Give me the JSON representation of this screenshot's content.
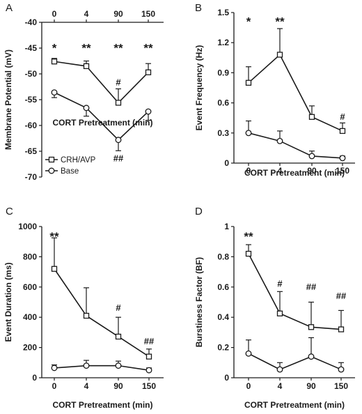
{
  "chart_data": [
    {
      "panel": "A",
      "type": "line",
      "x_axis_position": "top",
      "categories": [
        "0",
        "4",
        "90",
        "150"
      ],
      "xlabel": "CORT Pretreatment (min)",
      "ylabel": "Membrane Potential (mV)",
      "ylim": [
        -70,
        -40
      ],
      "yticks": [
        -40,
        -45,
        -50,
        -55,
        -60,
        -65,
        -70
      ],
      "ytick_labels": [
        "-40",
        "-45",
        "-50",
        "-55",
        "-60",
        "-65",
        "-70"
      ],
      "legend": {
        "placement": "bottom-left",
        "entries": [
          "CRH/AVP",
          "Base"
        ]
      },
      "error_direction": {
        "CRH/AVP": "up",
        "Base": "down"
      },
      "series": [
        {
          "name": "CRH/AVP",
          "marker": "square",
          "values": [
            -47.6,
            -48.5,
            -55.6,
            -49.7
          ],
          "errors": [
            0.6,
            1.0,
            2.7,
            1.7
          ]
        },
        {
          "name": "Base",
          "marker": "circle",
          "values": [
            -53.6,
            -56.6,
            -62.8,
            -57.3
          ],
          "errors": [
            1.0,
            1.6,
            2.1,
            1.7
          ]
        }
      ],
      "annotations": [
        {
          "text": "*",
          "x": "0",
          "y": -44.8,
          "size": "big"
        },
        {
          "text": "**",
          "x": "4",
          "y": -44.8,
          "size": "big"
        },
        {
          "text": "**",
          "x": "90",
          "y": -44.8,
          "size": "big"
        },
        {
          "text": "#",
          "x": "90",
          "y": -51.7,
          "size": "small"
        },
        {
          "text": "**",
          "x": "150",
          "y": -44.8,
          "size": "big"
        },
        {
          "text": "##",
          "x": "90",
          "y": -66.4,
          "size": "small"
        }
      ]
    },
    {
      "panel": "B",
      "type": "line",
      "x_axis_position": "bottom",
      "categories": [
        "0",
        "4",
        "90",
        "150"
      ],
      "xlabel": "CORT Pretreatment (min)",
      "ylabel": "Event Frequency (Hz)",
      "ylim": [
        0,
        1.5
      ],
      "yticks": [
        0,
        0.3,
        0.6,
        0.9,
        1.2,
        1.5
      ],
      "ytick_labels": [
        "0",
        "0.3",
        "0.6",
        "0.9",
        "1.2",
        "1.5"
      ],
      "error_direction": {
        "CRH/AVP": "up",
        "Base": "up"
      },
      "series": [
        {
          "name": "CRH/AVP",
          "marker": "square",
          "values": [
            0.8,
            1.08,
            0.46,
            0.32
          ],
          "errors": [
            0.16,
            0.26,
            0.11,
            0.08
          ]
        },
        {
          "name": "Base",
          "marker": "circle",
          "values": [
            0.3,
            0.22,
            0.07,
            0.05
          ],
          "errors": [
            0.12,
            0.1,
            0.05,
            0.02
          ]
        }
      ],
      "annotations": [
        {
          "text": "*",
          "x": "0",
          "y": 1.42,
          "size": "big"
        },
        {
          "text": "**",
          "x": "4",
          "y": 1.42,
          "size": "big"
        },
        {
          "text": "#",
          "x": "150",
          "y": 0.46,
          "size": "small"
        }
      ]
    },
    {
      "panel": "C",
      "type": "line",
      "x_axis_position": "bottom",
      "categories": [
        "0",
        "4",
        "90",
        "150"
      ],
      "xlabel": "CORT Pretreatment (min)",
      "ylabel": "Event Duration (ms)",
      "ylim": [
        0,
        1000
      ],
      "yticks": [
        0,
        200,
        400,
        600,
        800,
        1000
      ],
      "ytick_labels": [
        "0",
        "200",
        "400",
        "600",
        "800",
        "1000"
      ],
      "error_direction": {
        "CRH/AVP": "up",
        "Base": "up"
      },
      "series": [
        {
          "name": "CRH/AVP",
          "marker": "square",
          "values": [
            720,
            410,
            272,
            140
          ],
          "errors": [
            205,
            185,
            128,
            50
          ]
        },
        {
          "name": "Base",
          "marker": "circle",
          "values": [
            65,
            80,
            80,
            50
          ],
          "errors": [
            20,
            35,
            30,
            15
          ]
        }
      ],
      "annotations": [
        {
          "text": "**",
          "x": "0",
          "y": 940,
          "size": "big"
        },
        {
          "text": "#",
          "x": "90",
          "y": 460,
          "size": "small"
        },
        {
          "text": "##",
          "x": "150",
          "y": 240,
          "size": "small"
        }
      ]
    },
    {
      "panel": "D",
      "type": "line",
      "x_axis_position": "bottom",
      "categories": [
        "0",
        "4",
        "90",
        "150"
      ],
      "xlabel": "CORT Pretreatment (min)",
      "ylabel": "Burstiness Factor (BF)",
      "ylim": [
        0,
        1
      ],
      "yticks": [
        0,
        0.2,
        0.4,
        0.6,
        0.8,
        1
      ],
      "ytick_labels": [
        "0",
        "0.2",
        "0.4",
        "0.6",
        "0.8",
        "1"
      ],
      "error_direction": {
        "CRH/AVP": "up",
        "Base": "up"
      },
      "series": [
        {
          "name": "CRH/AVP",
          "marker": "square",
          "values": [
            0.82,
            0.425,
            0.335,
            0.32
          ],
          "errors": [
            0.06,
            0.145,
            0.165,
            0.125
          ]
        },
        {
          "name": "Base",
          "marker": "circle",
          "values": [
            0.16,
            0.055,
            0.14,
            0.055
          ],
          "errors": [
            0.09,
            0.045,
            0.125,
            0.045
          ]
        }
      ],
      "annotations": [
        {
          "text": "**",
          "x": "0",
          "y": 0.94,
          "size": "big"
        },
        {
          "text": "#",
          "x": "4",
          "y": 0.62,
          "size": "small"
        },
        {
          "text": "##",
          "x": "90",
          "y": 0.6,
          "size": "small"
        },
        {
          "text": "##",
          "x": "150",
          "y": 0.54,
          "size": "small"
        }
      ]
    }
  ]
}
